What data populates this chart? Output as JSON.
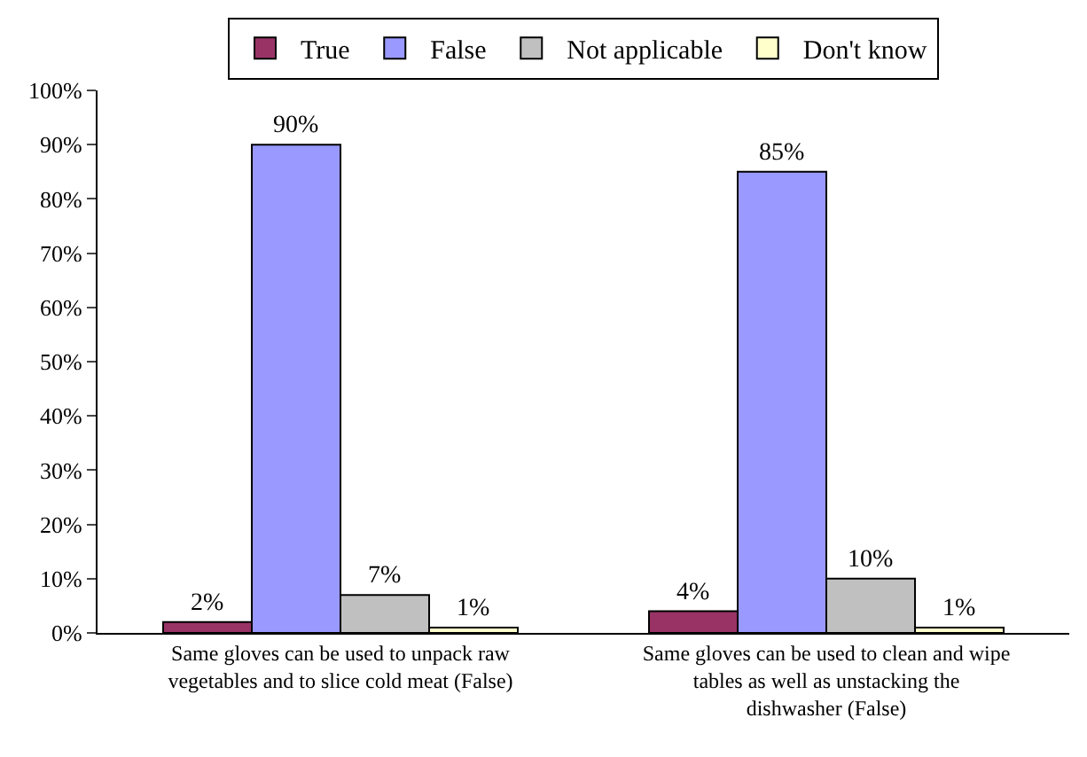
{
  "chart_data": {
    "type": "bar",
    "categories": [
      "Same gloves can be used to unpack raw vegetables and to slice cold meat (False)",
      "Same gloves can be used to clean and wipe tables as well as unstacking the dishwasher (False)"
    ],
    "series": [
      {
        "name": "True",
        "color": "#993366",
        "values": [
          2,
          4
        ],
        "value_labels": [
          "2%",
          "4%"
        ]
      },
      {
        "name": "False",
        "color": "#9999ff",
        "values": [
          90,
          85
        ],
        "value_labels": [
          "90%",
          "85%"
        ]
      },
      {
        "name": "Not applicable",
        "color": "#c0c0c0",
        "values": [
          7,
          10
        ],
        "value_labels": [
          "7%",
          "10%"
        ]
      },
      {
        "name": "Don't know",
        "color": "#ffffcc",
        "values": [
          1,
          1
        ],
        "value_labels": [
          "1%",
          "1%"
        ]
      }
    ],
    "ylim": [
      0,
      100
    ],
    "yticks": [
      {
        "value": 0,
        "label": "0%"
      },
      {
        "value": 10,
        "label": "10%"
      },
      {
        "value": 20,
        "label": "20%"
      },
      {
        "value": 30,
        "label": "30%"
      },
      {
        "value": 40,
        "label": "40%"
      },
      {
        "value": 50,
        "label": "50%"
      },
      {
        "value": 60,
        "label": "60%"
      },
      {
        "value": 70,
        "label": "70%"
      },
      {
        "value": 80,
        "label": "80%"
      },
      {
        "value": 90,
        "label": "90%"
      },
      {
        "value": 100,
        "label": "100%"
      }
    ],
    "grid": false,
    "legend": "top"
  }
}
